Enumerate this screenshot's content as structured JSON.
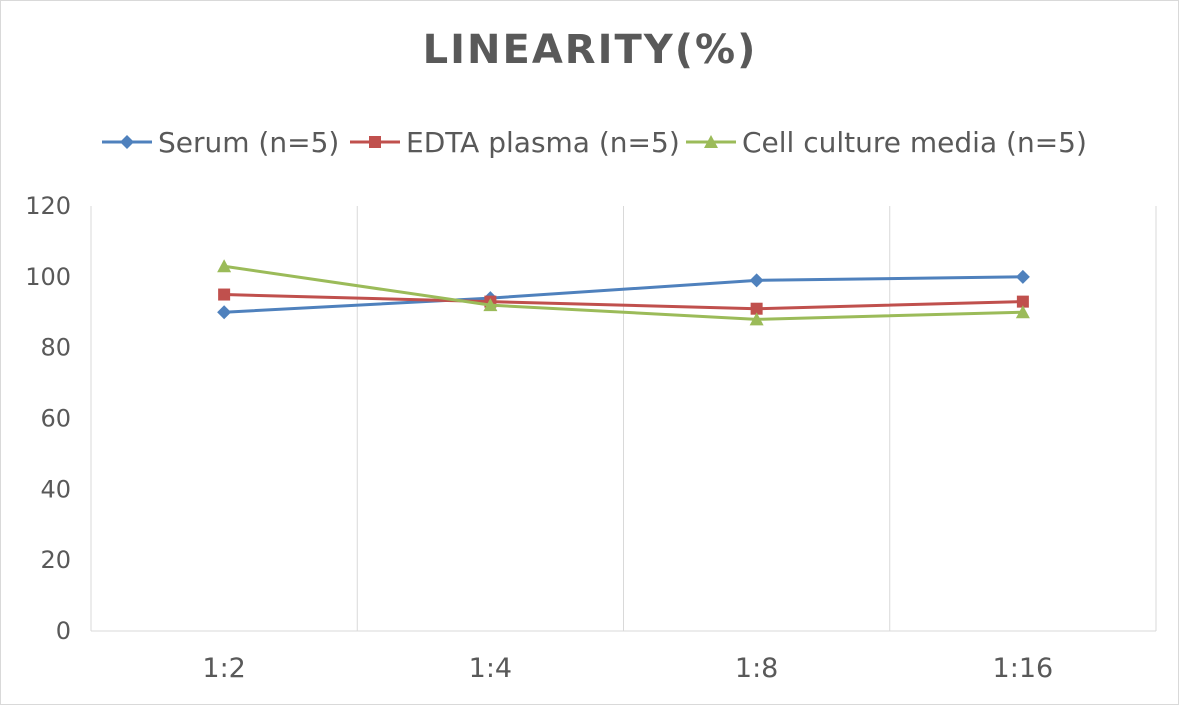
{
  "chart_data": {
    "type": "line",
    "title": "LINEARITY(%)",
    "xlabel": "",
    "ylabel": "",
    "categories": [
      "1:2",
      "1:4",
      "1:8",
      "1:16"
    ],
    "ylim": [
      0,
      120
    ],
    "yticks": [
      0,
      20,
      40,
      60,
      80,
      100,
      120
    ],
    "grid": "vertical",
    "legend_position": "top",
    "series": [
      {
        "name": "Serum (n=5)",
        "values": [
          90,
          94,
          99,
          100
        ],
        "color": "#4f81bd",
        "marker": "diamond"
      },
      {
        "name": "EDTA plasma (n=5)",
        "values": [
          95,
          93,
          91,
          93
        ],
        "color": "#c0504d",
        "marker": "square"
      },
      {
        "name": "Cell culture media (n=5)",
        "values": [
          103,
          92,
          88,
          90
        ],
        "color": "#9bbb59",
        "marker": "triangle"
      }
    ]
  }
}
